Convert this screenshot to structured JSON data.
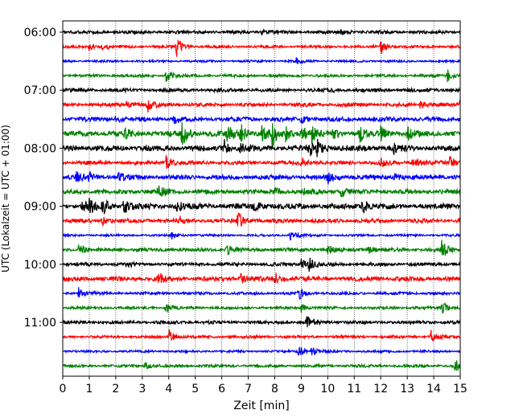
{
  "chart_data": {
    "type": "line",
    "title": "",
    "xlabel": "Zeit  [min]",
    "ylabel": "UTC (Lokalzeit = UTC + 01:00)",
    "xlim": [
      0,
      15
    ],
    "xticks": [
      0,
      1,
      2,
      3,
      4,
      5,
      6,
      7,
      8,
      9,
      10,
      11,
      12,
      13,
      14,
      15
    ],
    "xtick_labels": [
      "0",
      "1",
      "2",
      "3",
      "4",
      "5",
      "6",
      "7",
      "8",
      "9",
      "10",
      "11",
      "12",
      "13",
      "14",
      "15"
    ],
    "ytick_labels": [
      "06:00",
      "07:00",
      "08:00",
      "09:00",
      "10:00",
      "11:00"
    ],
    "ytick_rows": [
      0,
      4,
      8,
      12,
      16,
      20
    ],
    "grid": "vertical dotted",
    "trace_colors": [
      "#000000",
      "#ff0000",
      "#0000ff",
      "#008000"
    ],
    "series": [
      {
        "row": 0,
        "start": "06:00",
        "noise": 0.18,
        "events": [
          [
            7.5,
            0.35
          ],
          [
            10.5,
            0.3
          ]
        ]
      },
      {
        "row": 1,
        "start": "06:15",
        "noise": 0.15,
        "events": [
          [
            1.0,
            0.5
          ],
          [
            1.5,
            0.4
          ],
          [
            4.3,
            1.3
          ],
          [
            12.0,
            1.0
          ]
        ]
      },
      {
        "row": 2,
        "start": "06:30",
        "noise": 0.12,
        "events": [
          [
            8.8,
            0.5
          ]
        ]
      },
      {
        "row": 3,
        "start": "06:45",
        "noise": 0.15,
        "events": [
          [
            3.9,
            0.9
          ],
          [
            14.5,
            0.9
          ]
        ]
      },
      {
        "row": 4,
        "start": "07:00",
        "noise": 0.2,
        "events": [
          [
            10.0,
            0.3
          ]
        ]
      },
      {
        "row": 5,
        "start": "07:15",
        "noise": 0.2,
        "events": [
          [
            2.4,
            0.5
          ],
          [
            3.2,
            0.9
          ],
          [
            13.5,
            0.7
          ],
          [
            15.0,
            0.9
          ]
        ]
      },
      {
        "row": 6,
        "start": "07:30",
        "noise": 0.25,
        "events": [
          [
            2.0,
            0.5
          ],
          [
            4.2,
            0.5
          ],
          [
            9.0,
            0.4
          ]
        ]
      },
      {
        "row": 7,
        "start": "07:45",
        "noise": 0.3,
        "events": [
          [
            2.3,
            0.9
          ],
          [
            4.5,
            1.7
          ],
          [
            6.2,
            1.2
          ],
          [
            6.7,
            1.3
          ],
          [
            7.5,
            1.2
          ],
          [
            7.9,
            1.6
          ],
          [
            8.4,
            0.9
          ],
          [
            9.0,
            1.2
          ],
          [
            9.4,
            1.0
          ],
          [
            10.2,
            0.8
          ],
          [
            11.2,
            1.0
          ],
          [
            12.0,
            0.9
          ],
          [
            13.0,
            0.8
          ]
        ]
      },
      {
        "row": 8,
        "start": "08:00",
        "noise": 0.3,
        "events": [
          [
            6.1,
            1.0
          ],
          [
            6.7,
            0.8
          ],
          [
            9.3,
            1.2
          ],
          [
            9.6,
            1.0
          ],
          [
            12.5,
            0.8
          ]
        ]
      },
      {
        "row": 9,
        "start": "08:15",
        "noise": 0.22,
        "events": [
          [
            3.9,
            1.1
          ],
          [
            9.0,
            0.6
          ],
          [
            12.0,
            0.6
          ],
          [
            13.2,
            0.8
          ],
          [
            14.6,
            0.8
          ]
        ]
      },
      {
        "row": 10,
        "start": "08:30",
        "noise": 0.25,
        "events": [
          [
            0.5,
            0.6
          ],
          [
            1.0,
            0.7
          ],
          [
            2.1,
            0.6
          ],
          [
            10.0,
            0.9
          ],
          [
            12.5,
            0.5
          ]
        ]
      },
      {
        "row": 11,
        "start": "08:45",
        "noise": 0.25,
        "events": [
          [
            3.6,
            0.9
          ],
          [
            8.0,
            0.6
          ],
          [
            9.1,
            0.5
          ],
          [
            10.5,
            0.6
          ]
        ]
      },
      {
        "row": 12,
        "start": "09:00",
        "noise": 0.3,
        "events": [
          [
            0.7,
            0.8
          ],
          [
            1.0,
            0.9
          ],
          [
            1.5,
            1.0
          ],
          [
            2.3,
            1.0
          ],
          [
            4.3,
            0.8
          ],
          [
            7.2,
            0.7
          ],
          [
            11.3,
            1.2
          ]
        ]
      },
      {
        "row": 13,
        "start": "09:15",
        "noise": 0.22,
        "events": [
          [
            1.5,
            0.5
          ],
          [
            4.4,
            0.5
          ],
          [
            6.6,
            1.2
          ],
          [
            15.0,
            0.9
          ]
        ]
      },
      {
        "row": 14,
        "start": "09:30",
        "noise": 0.12,
        "events": [
          [
            4.1,
            0.6
          ],
          [
            8.6,
            0.9
          ]
        ]
      },
      {
        "row": 15,
        "start": "09:45",
        "noise": 0.2,
        "events": [
          [
            0.6,
            0.6
          ],
          [
            6.2,
            0.8
          ],
          [
            10.0,
            0.7
          ],
          [
            11.5,
            0.6
          ],
          [
            14.3,
            1.3
          ]
        ]
      },
      {
        "row": 16,
        "start": "10:00",
        "noise": 0.18,
        "events": [
          [
            2.4,
            0.4
          ],
          [
            9.0,
            0.9
          ],
          [
            9.3,
            0.8
          ]
        ]
      },
      {
        "row": 17,
        "start": "10:15",
        "noise": 0.25,
        "events": [
          [
            3.6,
            0.9
          ],
          [
            6.7,
            0.8
          ],
          [
            8.0,
            0.8
          ]
        ]
      },
      {
        "row": 18,
        "start": "10:30",
        "noise": 0.15,
        "events": [
          [
            0.6,
            0.8
          ],
          [
            8.9,
            0.9
          ]
        ]
      },
      {
        "row": 19,
        "start": "10:45",
        "noise": 0.15,
        "events": [
          [
            3.9,
            0.7
          ],
          [
            9.0,
            0.7
          ],
          [
            14.3,
            1.1
          ]
        ]
      },
      {
        "row": 20,
        "start": "11:00",
        "noise": 0.18,
        "events": [
          [
            9.2,
            0.9
          ]
        ]
      },
      {
        "row": 21,
        "start": "11:15",
        "noise": 0.15,
        "events": [
          [
            4.0,
            1.0
          ],
          [
            13.9,
            0.9
          ]
        ]
      },
      {
        "row": 22,
        "start": "11:30",
        "noise": 0.12,
        "events": [
          [
            8.9,
            1.0
          ],
          [
            9.4,
            0.6
          ]
        ]
      },
      {
        "row": 23,
        "start": "11:45",
        "noise": 0.15,
        "events": [
          [
            3.1,
            0.5
          ],
          [
            14.8,
            0.9
          ]
        ]
      }
    ]
  }
}
